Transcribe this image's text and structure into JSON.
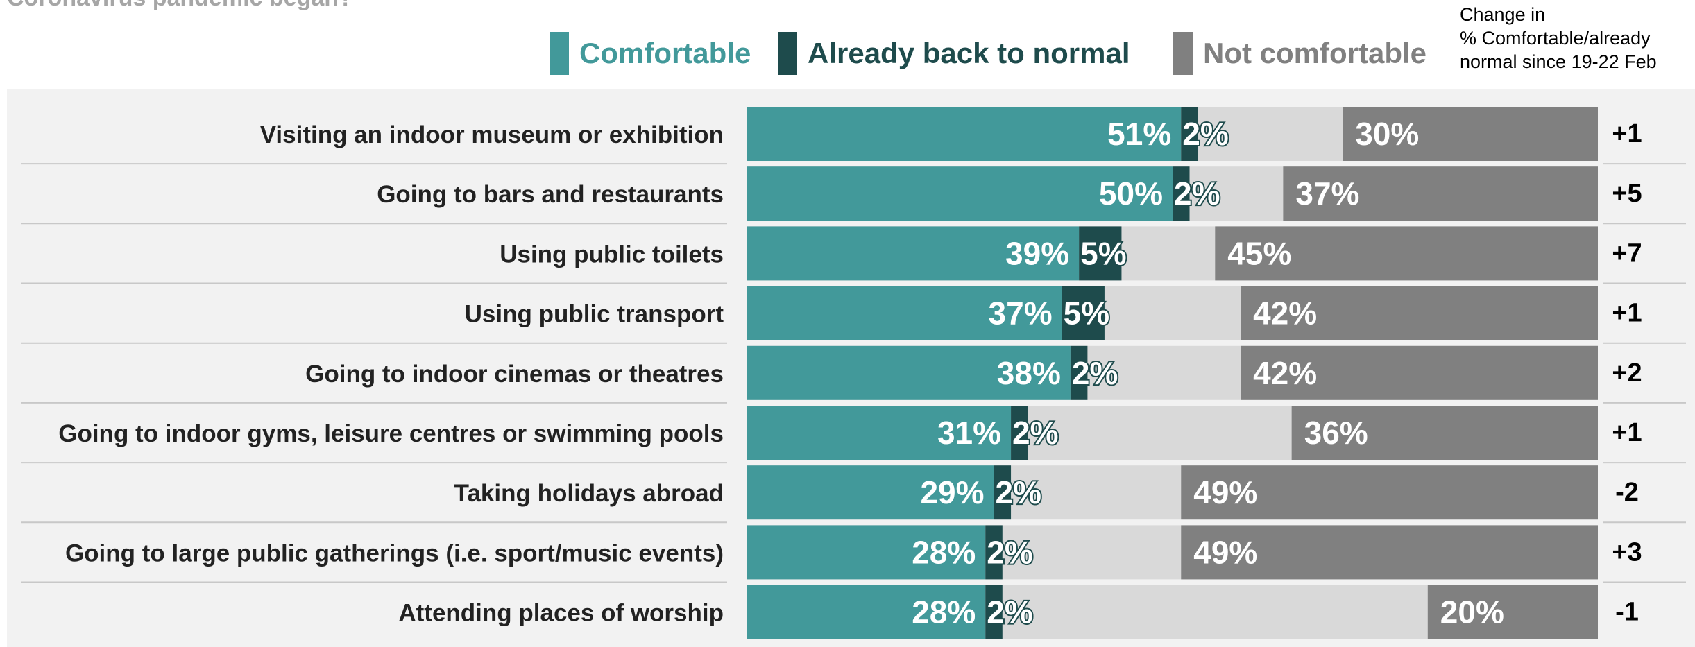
{
  "title": "Coronavirus pandemic began?",
  "legend": [
    {
      "label": "Comfortable",
      "color": "#42999a"
    },
    {
      "label": "Already back to normal",
      "color": "#1e4b4c"
    },
    {
      "label": "Not comfortable",
      "color": "#808080"
    }
  ],
  "change_header": [
    "Change in",
    "% Comfortable/already",
    "normal since 19-22 Feb"
  ],
  "colors": {
    "comfortable": "#42999a",
    "already_normal": "#1e4b4c",
    "not_comfortable": "#808080",
    "remainder": "#d9d9d9",
    "panel": "#f2f2f2"
  },
  "chart_data": {
    "type": "bar",
    "orientation": "horizontal",
    "stacked": true,
    "categories": [
      "Visiting an indoor museum or exhibition",
      "Going to bars and restaurants",
      "Using public toilets",
      "Using public transport",
      "Going to indoor cinemas or theatres",
      "Going to indoor gyms, leisure centres or swimming pools",
      "Taking holidays abroad",
      "Going to large public gatherings (i.e. sport/music events)",
      "Attending places of worship"
    ],
    "series": [
      {
        "name": "Comfortable",
        "values": [
          51,
          50,
          39,
          37,
          38,
          31,
          29,
          28,
          28
        ],
        "labels": [
          "51%",
          "50%",
          "39%",
          "37%",
          "38%",
          "31%",
          "29%",
          "28%",
          "28%"
        ]
      },
      {
        "name": "Already back to normal",
        "values": [
          2,
          2,
          5,
          5,
          2,
          2,
          2,
          2,
          2
        ],
        "labels": [
          "2%",
          "2%",
          "5%",
          "5%",
          "2%",
          "2%",
          "2%",
          "2%",
          "2%"
        ]
      },
      {
        "name": "Not comfortable",
        "values": [
          30,
          37,
          45,
          42,
          42,
          36,
          49,
          49,
          20
        ],
        "labels": [
          "30%",
          "37%",
          "45%",
          "42%",
          "42%",
          "36%",
          "49%",
          "49%",
          "20%"
        ]
      }
    ],
    "change": [
      "+1",
      "+5",
      "+7",
      "+1",
      "+2",
      "+1",
      "-2",
      "+3",
      "-1"
    ],
    "xlim": [
      0,
      100
    ],
    "legend_position": "top"
  }
}
